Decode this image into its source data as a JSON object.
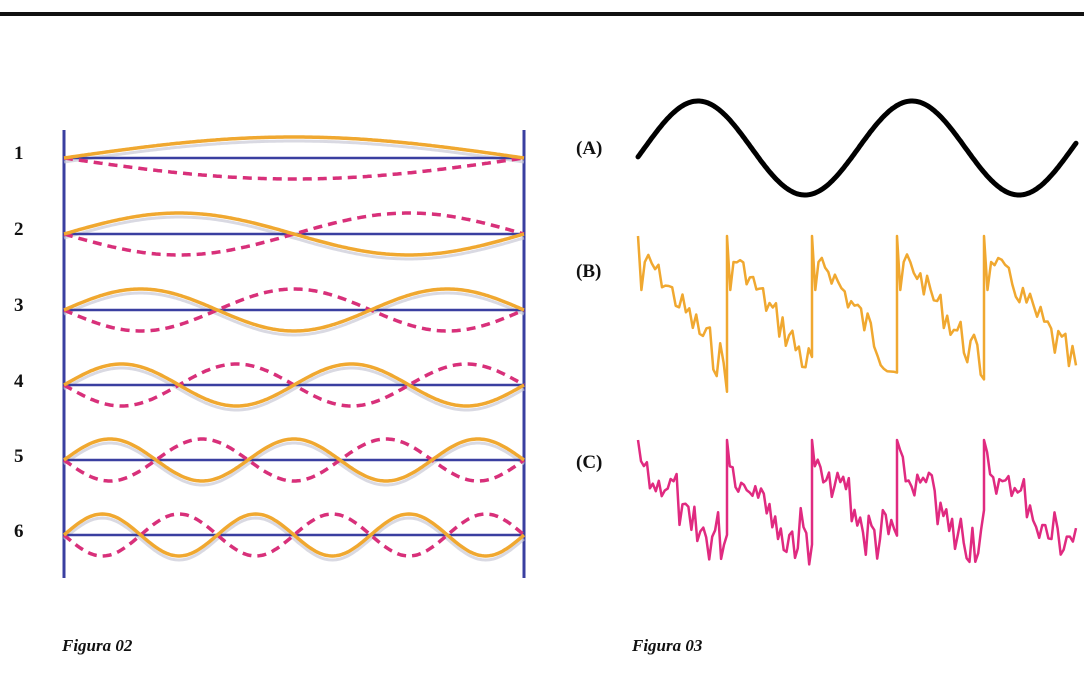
{
  "figure02": {
    "caption": "Figura 02",
    "modes": [
      {
        "label": "1",
        "harmonic": 1
      },
      {
        "label": "2",
        "harmonic": 2
      },
      {
        "label": "3",
        "harmonic": 3
      },
      {
        "label": "4",
        "harmonic": 4
      },
      {
        "label": "5",
        "harmonic": 5
      },
      {
        "label": "6",
        "harmonic": 6
      }
    ],
    "colors": {
      "frame": "#3a3fa0",
      "solid_wave": "#f0a830",
      "dashed_wave": "#d8307a"
    }
  },
  "figure03": {
    "caption": "Figura 03",
    "waves": [
      {
        "label": "(A)",
        "kind": "sine",
        "color": "#000000"
      },
      {
        "label": "(B)",
        "kind": "sawtooth-noisy",
        "color": "#f0a830"
      },
      {
        "label": "(C)",
        "kind": "complex-noisy",
        "color": "#e02a80"
      }
    ]
  }
}
